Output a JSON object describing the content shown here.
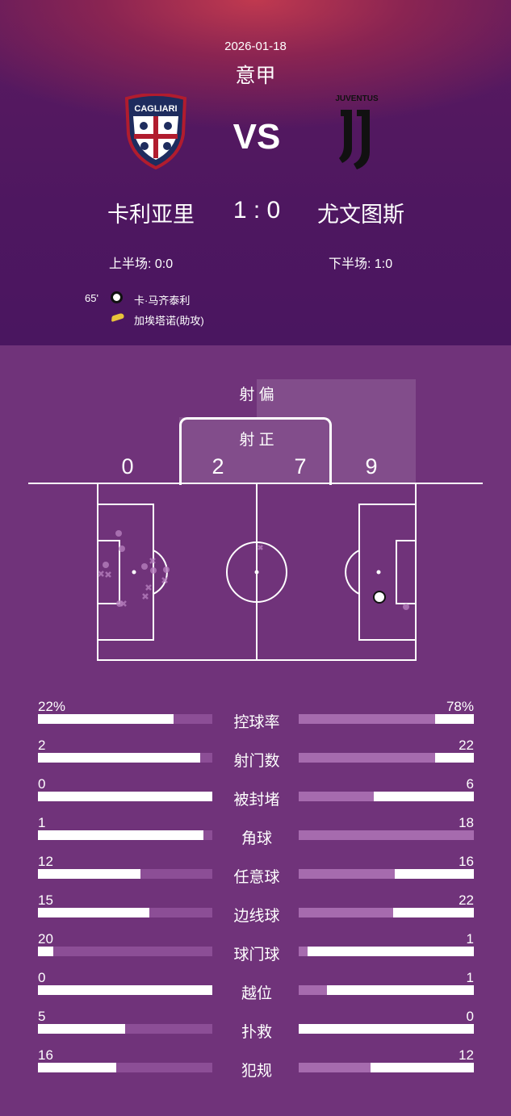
{
  "match": {
    "date": "2026-01-18",
    "league": "意甲",
    "vs_label": "VS",
    "home": "卡利亚里",
    "away": "尤文图斯",
    "score": "1 : 0",
    "home_logo_text": "CAGLIARI",
    "away_logo_text": "JUVENTUS",
    "first_half": "上半场: 0:0",
    "second_half": "下半场: 1:0"
  },
  "events": [
    {
      "minute": "65'",
      "icon": "soccer-ball-icon",
      "text": "卡·马齐泰利"
    },
    {
      "icon": "boot-icon",
      "text": "加埃塔诺(助攻)"
    }
  ],
  "shots": {
    "off_target_label": "射 偏",
    "on_target_label": "射 正",
    "home_off": "0",
    "home_on": "2",
    "away_on": "7",
    "away_off": "9"
  },
  "colors": {
    "background": "#70337a",
    "bar_home_rest": "#8c4e96",
    "bar_away_rest": "#a66bae",
    "bar_fill": "#ffffff"
  },
  "stats": [
    {
      "name": "控球率",
      "home": "22%",
      "away": "78%",
      "home_fill": 0.78,
      "away_fill": 0.22
    },
    {
      "name": "射门数",
      "home": "2",
      "away": "22",
      "home_fill": 0.93,
      "away_fill": 0.22
    },
    {
      "name": "被封堵",
      "home": "0",
      "away": "6",
      "home_fill": 1.0,
      "away_fill": 0.57
    },
    {
      "name": "角球",
      "home": "1",
      "away": "18",
      "home_fill": 0.95,
      "away_fill": 0.0
    },
    {
      "name": "任意球",
      "home": "12",
      "away": "16",
      "home_fill": 0.59,
      "away_fill": 0.45
    },
    {
      "name": "边线球",
      "home": "15",
      "away": "22",
      "home_fill": 0.64,
      "away_fill": 0.46
    },
    {
      "name": "球门球",
      "home": "20",
      "away": "1",
      "home_fill": 0.09,
      "away_fill": 0.95
    },
    {
      "name": "越位",
      "home": "0",
      "away": "1",
      "home_fill": 1.0,
      "away_fill": 0.84
    },
    {
      "name": "扑救",
      "home": "5",
      "away": "0",
      "home_fill": 0.5,
      "away_fill": 1.0
    },
    {
      "name": "犯规",
      "home": "16",
      "away": "12",
      "home_fill": 0.45,
      "away_fill": 0.59
    }
  ]
}
